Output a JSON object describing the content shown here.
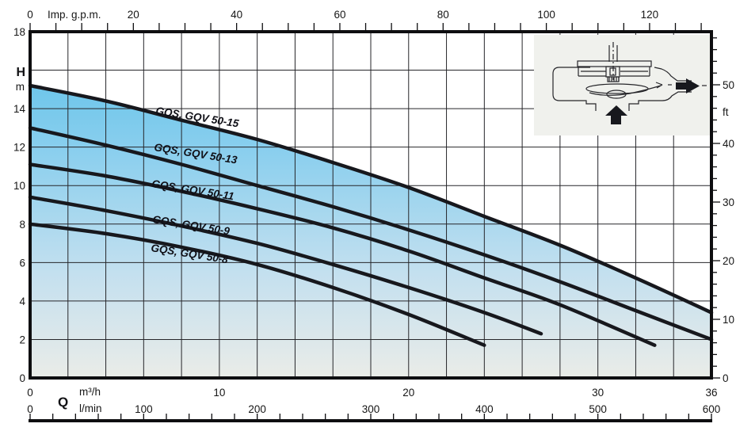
{
  "chart_data": {
    "type": "line",
    "description": "Pump head-capacity performance curves",
    "series": [
      {
        "name": "GQS, GQV 50-15",
        "points": [
          [
            0,
            15.2
          ],
          [
            4,
            14.4
          ],
          [
            8,
            13.4
          ],
          [
            12,
            12.4
          ],
          [
            16,
            11.2
          ],
          [
            20,
            9.9
          ],
          [
            24,
            8.4
          ],
          [
            28,
            6.9
          ],
          [
            32,
            5.2
          ],
          [
            36,
            3.4
          ]
        ]
      },
      {
        "name": "GQS, GQV 50-13",
        "points": [
          [
            0,
            13.0
          ],
          [
            4,
            12.1
          ],
          [
            8,
            11.1
          ],
          [
            12,
            10.0
          ],
          [
            16,
            8.9
          ],
          [
            20,
            7.7
          ],
          [
            24,
            6.4
          ],
          [
            28,
            5.0
          ],
          [
            32,
            3.5
          ],
          [
            36,
            2.0
          ]
        ]
      },
      {
        "name": "GQS, GQV 50-11",
        "points": [
          [
            0,
            11.1
          ],
          [
            4,
            10.5
          ],
          [
            8,
            9.7
          ],
          [
            12,
            8.8
          ],
          [
            16,
            7.8
          ],
          [
            20,
            6.6
          ],
          [
            24,
            5.2
          ],
          [
            28,
            3.8
          ],
          [
            33,
            1.7
          ]
        ]
      },
      {
        "name": "GQS, GQV 50-9",
        "points": [
          [
            0,
            9.4
          ],
          [
            4,
            8.7
          ],
          [
            8,
            7.9
          ],
          [
            12,
            7.0
          ],
          [
            16,
            5.9
          ],
          [
            20,
            4.7
          ],
          [
            24,
            3.4
          ],
          [
            27,
            2.3
          ]
        ]
      },
      {
        "name": "GQS, GQV 50-8",
        "points": [
          [
            0,
            8.0
          ],
          [
            4,
            7.5
          ],
          [
            8,
            6.8
          ],
          [
            12,
            5.9
          ],
          [
            16,
            4.7
          ],
          [
            20,
            3.3
          ],
          [
            24,
            1.7
          ]
        ]
      }
    ],
    "axes": {
      "left": {
        "label": "H",
        "unit": "m",
        "min": 0,
        "max": 18,
        "grid_step": 2,
        "tick_labels": [
          18,
          14,
          12,
          10,
          8,
          6,
          4,
          2,
          0
        ]
      },
      "right": {
        "unit": "ft",
        "tick_step": 2,
        "max_tick": 58,
        "tick_labels": [
          50,
          40,
          30,
          20,
          10,
          0
        ]
      },
      "top": {
        "label": "Imp. g.p.m.",
        "tick_step": 5,
        "max_tick": 130,
        "tick_labels": [
          0,
          20,
          40,
          60,
          80,
          100,
          120
        ]
      },
      "bottom_m3h": {
        "label": "Q",
        "unit": "m³/h",
        "min": 0,
        "max": 36,
        "tick_labels": [
          0,
          10,
          20,
          30,
          36
        ]
      },
      "bottom_lmin": {
        "unit": "l/min",
        "min": 0,
        "max": 600,
        "tick_step": 20,
        "tick_labels": [
          0,
          100,
          200,
          300,
          400,
          500,
          600
        ]
      }
    },
    "grid": true,
    "legend_position": "labels-on-curves",
    "inset_icon": "pump-flow-schematic",
    "colors": {
      "fill_top": "#58bfe8",
      "fill_mid1": "#8bcfee",
      "fill_mid2": "#c4e0ef",
      "fill_bottom": "#eaece8",
      "curve": "#17181d",
      "grid": "#26262a",
      "border": "#0e0e10",
      "inset_bg": "#f0f1ed",
      "text": "#161616"
    }
  }
}
